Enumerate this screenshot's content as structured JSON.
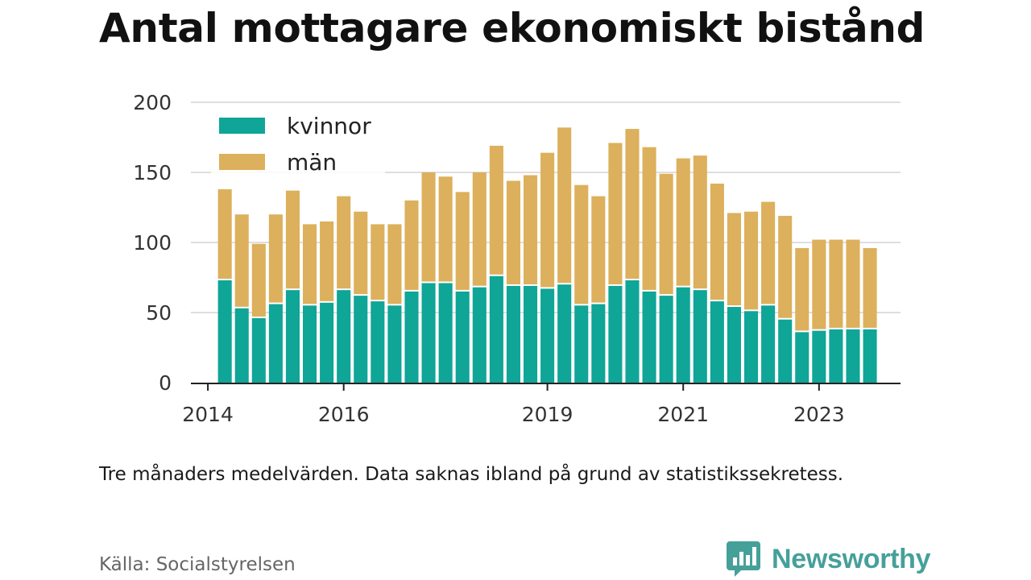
{
  "title": "Antal mottagare ekonomiskt bistånd",
  "note": "Tre månaders medelvärden. Data saknas ibland på grund av statistikssekretess.",
  "source": "Källa: Socialstyrelsen",
  "brand": {
    "name": "Newsworthy",
    "icon": "bar-chart-bubble-icon"
  },
  "colors": {
    "kvinnor": "#0fa597",
    "man": "#dcb05c",
    "grid": "#dedede",
    "axis": "#222222"
  },
  "chart_data": {
    "type": "bar",
    "stacked": true,
    "ylim": [
      0,
      200
    ],
    "yticks": [
      "0",
      "50",
      "100",
      "150",
      "200"
    ],
    "xticks": [
      {
        "label": "2014",
        "x": 2014.0
      },
      {
        "label": "2016",
        "x": 2016.0
      },
      {
        "label": "2019",
        "x": 2019.0
      },
      {
        "label": "2021",
        "x": 2021.0
      },
      {
        "label": "2023",
        "x": 2023.0
      }
    ],
    "xlim": [
      2013.75,
      2024.2
    ],
    "grid": true,
    "legend_position": "top-left",
    "x": [
      2014.25,
      2014.5,
      2014.75,
      2015.0,
      2015.25,
      2015.5,
      2015.75,
      2016.0,
      2016.25,
      2016.5,
      2016.75,
      2017.0,
      2017.25,
      2017.5,
      2017.75,
      2018.0,
      2018.25,
      2018.5,
      2018.75,
      2019.0,
      2019.25,
      2019.5,
      2019.75,
      2020.0,
      2020.25,
      2020.5,
      2020.75,
      2021.0,
      2021.25,
      2021.5,
      2021.75,
      2022.0,
      2022.25,
      2022.5,
      2022.75,
      2023.0,
      2023.25,
      2023.5,
      2023.75
    ],
    "series": [
      {
        "name": "kvinnor",
        "values": [
          73,
          53,
          46,
          56,
          66,
          55,
          57,
          66,
          62,
          58,
          55,
          65,
          71,
          71,
          65,
          68,
          76,
          69,
          69,
          67,
          70,
          55,
          56,
          69,
          73,
          65,
          62,
          68,
          66,
          58,
          54,
          51,
          55,
          45,
          36,
          37,
          38,
          38,
          38
        ]
      },
      {
        "name": "män",
        "values": [
          65,
          67,
          53,
          64,
          71,
          58,
          58,
          67,
          60,
          55,
          58,
          65,
          79,
          76,
          71,
          82,
          93,
          75,
          79,
          97,
          112,
          86,
          77,
          102,
          108,
          103,
          87,
          92,
          96,
          84,
          67,
          71,
          74,
          74,
          60,
          65,
          64,
          64,
          58
        ]
      }
    ]
  }
}
